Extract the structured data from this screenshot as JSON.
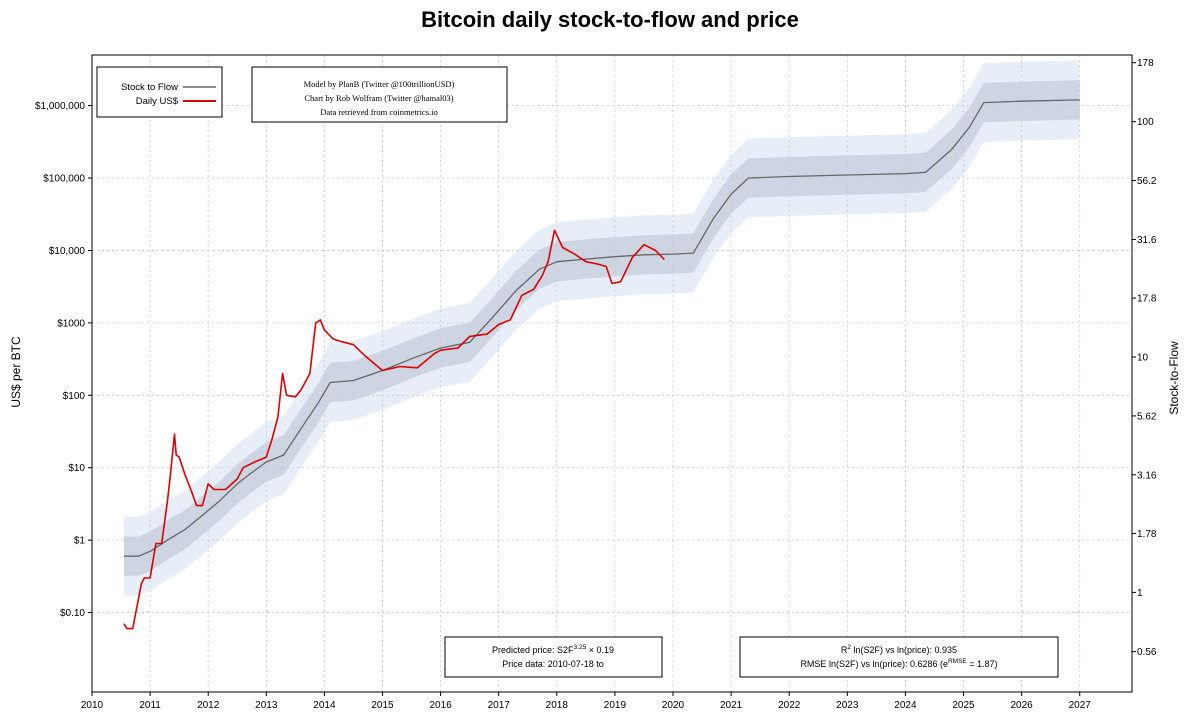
{
  "chart_data": {
    "type": "line",
    "title": "Bitcoin daily stock-to-flow and price",
    "ylabel": "US$ per BTC",
    "y2label": "Stock-to-Flow",
    "x_ticks": [
      "2010",
      "2011",
      "2012",
      "2013",
      "2014",
      "2015",
      "2016",
      "2017",
      "2018",
      "2019",
      "2020",
      "2021",
      "2022",
      "2023",
      "2024",
      "2025",
      "2026",
      "2027"
    ],
    "y_ticks": [
      {
        "value": 0.1,
        "label": "$0.10"
      },
      {
        "value": 1,
        "label": "$1"
      },
      {
        "value": 10,
        "label": "$10"
      },
      {
        "value": 100,
        "label": "$100"
      },
      {
        "value": 1000,
        "label": "$1000"
      },
      {
        "value": 10000,
        "label": "$10,000"
      },
      {
        "value": 100000,
        "label": "$100,000"
      },
      {
        "value": 1000000,
        "label": "$1,000,000"
      }
    ],
    "y2_ticks": [
      {
        "value": 0.56,
        "label": "0.56"
      },
      {
        "value": 1,
        "label": "1"
      },
      {
        "value": 1.78,
        "label": "1.78"
      },
      {
        "value": 3.16,
        "label": "3.16"
      },
      {
        "value": 5.62,
        "label": "5.62"
      },
      {
        "value": 10,
        "label": "10"
      },
      {
        "value": 17.8,
        "label": "17.8"
      },
      {
        "value": 31.6,
        "label": "31.6"
      },
      {
        "value": 56.2,
        "label": "56.2"
      },
      {
        "value": 100,
        "label": "100"
      },
      {
        "value": 178,
        "label": "178"
      }
    ],
    "xlim": [
      2010,
      2027.9
    ],
    "ylim": [
      0.008,
      5000000
    ],
    "y_scale": "log",
    "grid": true,
    "legend": "top-left",
    "series": [
      {
        "name": "Stock to Flow",
        "color": "#666666",
        "x": [
          2010.55,
          2010.8,
          2011.0,
          2011.3,
          2011.6,
          2011.9,
          2012.2,
          2012.5,
          2012.7,
          2013.0,
          2013.3,
          2013.6,
          2013.9,
          2014.1,
          2014.5,
          2015.0,
          2015.5,
          2016.0,
          2016.5,
          2016.9,
          2017.3,
          2017.7,
          2018.0,
          2018.5,
          2019.0,
          2019.5,
          2020.0,
          2020.35,
          2020.7,
          2021.0,
          2021.3,
          2022.0,
          2023.0,
          2024.0,
          2024.35,
          2024.8,
          2025.1,
          2025.35,
          2026.0,
          2027.0
        ],
        "values": [
          0.6,
          0.6,
          0.7,
          1.0,
          1.4,
          2.2,
          3.5,
          6,
          8,
          12,
          15,
          35,
          80,
          150,
          160,
          220,
          320,
          450,
          540,
          1200,
          2800,
          5500,
          7000,
          7600,
          8200,
          8700,
          8900,
          9200,
          28000,
          60000,
          100000,
          105000,
          110000,
          115000,
          120000,
          250000,
          500000,
          1100000,
          1150000,
          1200000
        ]
      },
      {
        "name": "Daily US$",
        "color": "#dd0000",
        "x": [
          2010.55,
          2010.6,
          2010.7,
          2010.85,
          2010.9,
          2011.0,
          2011.1,
          2011.2,
          2011.3,
          2011.35,
          2011.42,
          2011.45,
          2011.5,
          2011.6,
          2011.7,
          2011.8,
          2011.9,
          2012.0,
          2012.1,
          2012.3,
          2012.5,
          2012.6,
          2012.8,
          2013.0,
          2013.1,
          2013.2,
          2013.28,
          2013.35,
          2013.5,
          2013.6,
          2013.75,
          2013.85,
          2013.93,
          2014.0,
          2014.15,
          2014.3,
          2014.5,
          2014.7,
          2015.0,
          2015.3,
          2015.6,
          2015.9,
          2016.0,
          2016.3,
          2016.5,
          2016.8,
          2017.0,
          2017.2,
          2017.4,
          2017.6,
          2017.75,
          2017.85,
          2017.96,
          2018.1,
          2018.3,
          2018.5,
          2018.7,
          2018.85,
          2018.95,
          2019.1,
          2019.3,
          2019.5,
          2019.7,
          2019.85
        ],
        "values": [
          0.07,
          0.06,
          0.06,
          0.25,
          0.3,
          0.3,
          0.9,
          0.9,
          3.5,
          8,
          29,
          15,
          14,
          8,
          5,
          3,
          3,
          6,
          5,
          5,
          7,
          10,
          12,
          14,
          25,
          50,
          200,
          100,
          95,
          120,
          200,
          1000,
          1100,
          800,
          600,
          550,
          500,
          350,
          220,
          250,
          240,
          380,
          420,
          450,
          650,
          700,
          950,
          1100,
          2400,
          2900,
          4500,
          7000,
          19000,
          11000,
          9000,
          7000,
          6500,
          6000,
          3500,
          3700,
          8000,
          12000,
          10000,
          7500
        ]
      }
    ],
    "legend_entries": [
      "Stock to Flow",
      "Daily US$"
    ],
    "credits": [
      "Model by PlanB (Twitter @100trillionUSD)",
      "Chart by Rob Wolfram (Twitter @hamal03)",
      "Data retrieved from coinmetrics.io"
    ],
    "annotations": {
      "predicted_price_prefix": "Predicted price: S2F",
      "predicted_price_exp": "3.25",
      "predicted_price_suffix": " × 0.19",
      "price_data": "Price data: 2010-07-18 to",
      "r2_prefix": "R",
      "r2_exp": "2",
      "r2_suffix": " ln(S2F) vs ln(price): 0.935",
      "rmse_prefix": "RMSE ln(S2F) vs ln(price): 0.6286 (e",
      "rmse_exp": "RMSE",
      "rmse_suffix": " = 1.87)"
    },
    "colors": {
      "band_outer": "#e8eef8",
      "band_inner": "#cdd5e3",
      "grid": "#c8c8c8"
    }
  }
}
